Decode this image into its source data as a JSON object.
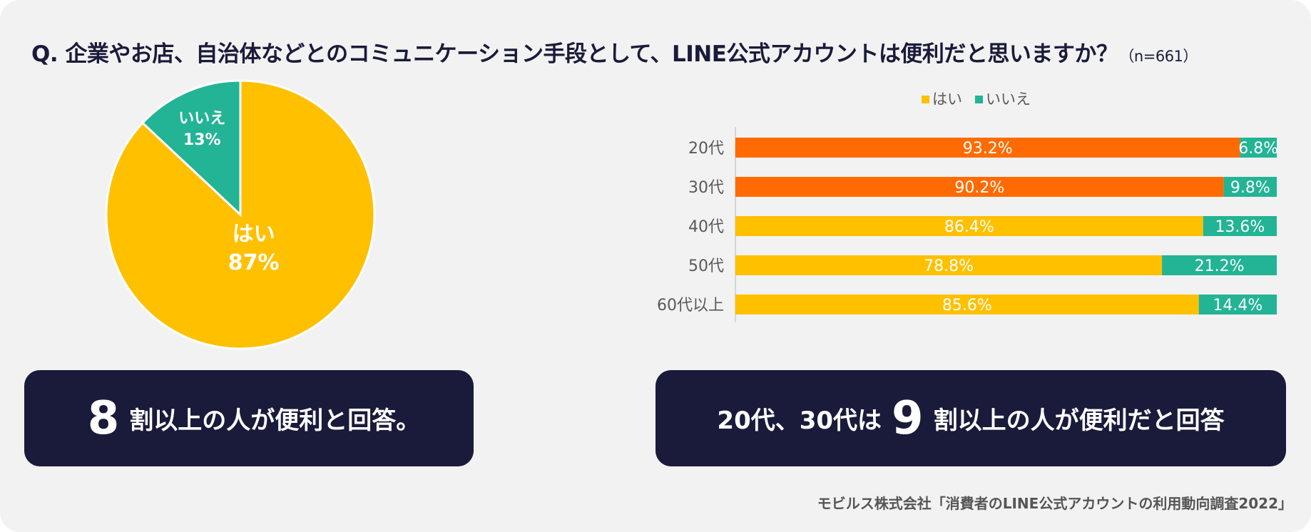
{
  "title": {
    "question": "Q. 企業やお店、自治体などとのコミュニケーション手段として、LINE公式アカウントは便利だと思いますか？",
    "sample": "（n=661）"
  },
  "colors": {
    "yes": "#FFC000",
    "no": "#22B495",
    "yes_highlight": "#FF6B00",
    "banner_bg": "#1A1B3A"
  },
  "chart_data": [
    {
      "type": "pie",
      "slices": [
        {
          "label": "はい",
          "value": 87,
          "value_label": "87%",
          "color": "#FFC000"
        },
        {
          "label": "いいえ",
          "value": 13,
          "value_label": "13%",
          "color": "#22B495"
        }
      ]
    },
    {
      "type": "bar",
      "orientation": "horizontal",
      "stacked": true,
      "legend": {
        "placement": "top",
        "items": [
          "はい",
          "いいえ"
        ]
      },
      "categories": [
        "20代",
        "30代",
        "40代",
        "50代",
        "60代以上"
      ],
      "series": [
        {
          "name": "はい",
          "values": [
            93.2,
            90.2,
            86.4,
            78.8,
            85.6
          ],
          "labels": [
            "93.2%",
            "90.2%",
            "86.4%",
            "78.8%",
            "85.6%"
          ],
          "colors": [
            "#FF6B00",
            "#FF6B00",
            "#FFC000",
            "#FFC000",
            "#FFC000"
          ]
        },
        {
          "name": "いいえ",
          "values": [
            6.8,
            9.8,
            13.6,
            21.2,
            14.4
          ],
          "labels": [
            "6.8%",
            "9.8%",
            "13.6%",
            "21.2%",
            "14.4%"
          ],
          "colors": [
            "#22B495",
            "#22B495",
            "#22B495",
            "#22B495",
            "#22B495"
          ]
        }
      ],
      "xlim": [
        0,
        100
      ]
    }
  ],
  "banner_left": {
    "number": "8",
    "text": "割以上の人が便利と回答。"
  },
  "banner_right": {
    "prefix": "20代、30代は",
    "number": "9",
    "text": "割以上の人が便利だと回答"
  },
  "source": "モビルス株式会社「消費者のLINE公式アカウントの利用動向調査2022」"
}
